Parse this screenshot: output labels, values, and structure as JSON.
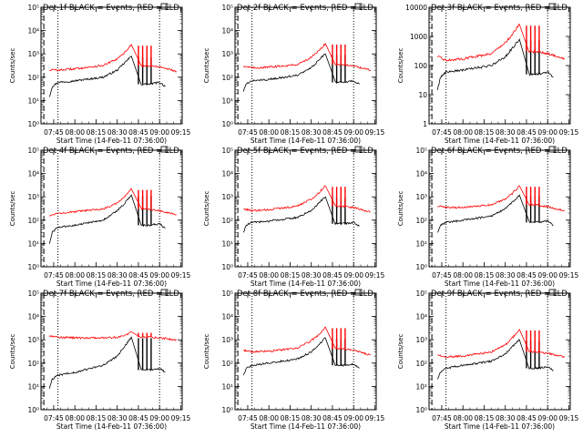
{
  "x_tick_labels": [
    "07:45",
    "08:00",
    "08:15",
    "08:30",
    "08:45",
    "09:00",
    "09:15"
  ],
  "x_tick_times_min": [
    465,
    480,
    495,
    510,
    525,
    540,
    555
  ],
  "x_range_min": [
    456,
    556
  ],
  "dotted_lines_min": [
    468,
    540
  ],
  "dashed_line_min": 458,
  "colors": {
    "events": "#000000",
    "lld": "#ff0000"
  },
  "chart_data": [
    {
      "type": "line",
      "title": "Det 1f BLACK = Events, RED = LLD",
      "xlabel": "Start Time (14-Feb-11 07:36:00)",
      "ylabel": "Counts/sec",
      "yscale": "log",
      "ylim": [
        1,
        100000
      ],
      "ytick_labels": [
        "10⁰",
        "10¹",
        "10²",
        "10³",
        "10⁴",
        "10⁵"
      ],
      "series": [
        {
          "name": "Events",
          "x": [
            462,
            464,
            468,
            480,
            500,
            510,
            515,
            518,
            520,
            527,
            532,
            540,
            544
          ],
          "y": [
            15,
            40,
            60,
            70,
            100,
            200,
            400,
            600,
            800,
            50,
            50,
            60,
            40
          ]
        },
        {
          "name": "LLD",
          "x": [
            462,
            465,
            468,
            480,
            500,
            510,
            515,
            518,
            520,
            527,
            532,
            540,
            552
          ],
          "y": [
            200,
            210,
            200,
            230,
            320,
            600,
            1100,
            1800,
            2500,
            300,
            300,
            280,
            180
          ]
        }
      ]
    },
    {
      "type": "line",
      "title": "Det 2f BLACK = Events, RED = LLD",
      "xlabel": "Start Time (14-Feb-11 07:36:00)",
      "ylabel": "Counts/sec",
      "yscale": "log",
      "ylim": [
        1,
        100000
      ],
      "ytick_labels": [
        "10⁰",
        "10¹",
        "10²",
        "10³",
        "10⁴",
        "10⁵"
      ],
      "series": [
        {
          "name": "Events",
          "x": [
            462,
            464,
            468,
            480,
            500,
            510,
            515,
            518,
            520,
            527,
            532,
            540,
            544
          ],
          "y": [
            25,
            50,
            70,
            80,
            120,
            250,
            500,
            800,
            1000,
            60,
            60,
            70,
            50
          ]
        },
        {
          "name": "LLD",
          "x": [
            462,
            465,
            468,
            480,
            500,
            510,
            515,
            518,
            520,
            527,
            532,
            540,
            552
          ],
          "y": [
            300,
            280,
            250,
            270,
            350,
            700,
            1300,
            2000,
            2800,
            350,
            350,
            300,
            200
          ]
        }
      ]
    },
    {
      "type": "line",
      "title": "Det 3f BLACK = Events, RED = LLD",
      "xlabel": "Start Time (14-Feb-11 07:36:00)",
      "ylabel": "Counts/sec",
      "yscale": "log",
      "ylim": [
        1,
        10000
      ],
      "ytick_labels": [
        "1",
        "10",
        "100",
        "1000",
        "10000"
      ],
      "series": [
        {
          "name": "Events",
          "x": [
            462,
            464,
            468,
            480,
            500,
            510,
            515,
            518,
            520,
            527,
            532,
            540,
            544
          ],
          "y": [
            15,
            40,
            60,
            70,
            100,
            200,
            400,
            600,
            800,
            50,
            50,
            60,
            40
          ]
        },
        {
          "name": "LLD",
          "x": [
            462,
            465,
            468,
            480,
            500,
            510,
            515,
            518,
            520,
            527,
            532,
            540,
            552
          ],
          "y": [
            200,
            180,
            150,
            170,
            260,
            600,
            1200,
            1900,
            2600,
            300,
            300,
            260,
            170
          ]
        }
      ]
    },
    {
      "type": "line",
      "title": "Det 4f BLACK = Events, RED = LLD",
      "xlabel": "Start Time (14-Feb-11 07:36:00)",
      "ylabel": "Counts/sec",
      "yscale": "log",
      "ylim": [
        1,
        100000
      ],
      "ytick_labels": [
        "10⁰",
        "10¹",
        "10²",
        "10³",
        "10⁴",
        "10⁵"
      ],
      "series": [
        {
          "name": "Events",
          "x": [
            462,
            464,
            468,
            480,
            500,
            510,
            515,
            518,
            520,
            527,
            532,
            540,
            544
          ],
          "y": [
            10,
            30,
            50,
            60,
            100,
            250,
            500,
            900,
            1200,
            60,
            60,
            70,
            45
          ]
        },
        {
          "name": "LLD",
          "x": [
            462,
            465,
            468,
            480,
            500,
            510,
            515,
            518,
            520,
            527,
            532,
            540,
            552
          ],
          "y": [
            150,
            180,
            200,
            230,
            300,
            550,
            1000,
            1600,
            2200,
            300,
            300,
            250,
            170
          ]
        }
      ]
    },
    {
      "type": "line",
      "title": "Det 5f BLACK = Events, RED = LLD",
      "xlabel": "Start Time (14-Feb-11 07:36:00)",
      "ylabel": "Counts/sec",
      "yscale": "log",
      "ylim": [
        1,
        100000
      ],
      "ytick_labels": [
        "10⁰",
        "10¹",
        "10²",
        "10³",
        "10⁴",
        "10⁵"
      ],
      "series": [
        {
          "name": "Events",
          "x": [
            462,
            464,
            468,
            480,
            500,
            510,
            515,
            518,
            520,
            527,
            532,
            540,
            544
          ],
          "y": [
            30,
            60,
            80,
            90,
            130,
            260,
            500,
            800,
            1000,
            70,
            70,
            80,
            55
          ]
        },
        {
          "name": "LLD",
          "x": [
            462,
            465,
            468,
            480,
            500,
            510,
            515,
            518,
            520,
            527,
            532,
            540,
            552
          ],
          "y": [
            300,
            280,
            250,
            280,
            400,
            800,
            1400,
            2200,
            3000,
            400,
            400,
            350,
            220
          ]
        }
      ]
    },
    {
      "type": "line",
      "title": "Det 6f BLACK = Events, RED = LLD",
      "xlabel": "Start Time (14-Feb-11 07:36:00)",
      "ylabel": "Counts/sec",
      "yscale": "log",
      "ylim": [
        1,
        100000
      ],
      "ytick_labels": [
        "10⁰",
        "10¹",
        "10²",
        "10³",
        "10⁴",
        "10⁵"
      ],
      "series": [
        {
          "name": "Events",
          "x": [
            462,
            464,
            468,
            480,
            500,
            510,
            515,
            518,
            520,
            527,
            532,
            540,
            544
          ],
          "y": [
            30,
            60,
            80,
            100,
            150,
            300,
            600,
            900,
            1200,
            80,
            80,
            90,
            60
          ]
        },
        {
          "name": "LLD",
          "x": [
            462,
            465,
            468,
            480,
            500,
            510,
            515,
            518,
            520,
            527,
            532,
            540,
            552
          ],
          "y": [
            400,
            380,
            350,
            350,
            450,
            800,
            1400,
            2200,
            3000,
            450,
            450,
            380,
            250
          ]
        }
      ]
    },
    {
      "type": "line",
      "title": "Det 7f BLACK = Events, RED = LLD",
      "xlabel": "Start Time (14-Feb-11 07:36:00)",
      "ylabel": "Counts/sec",
      "yscale": "log",
      "ylim": [
        1,
        100000
      ],
      "ytick_labels": [
        "10⁰",
        "10¹",
        "10²",
        "10³",
        "10⁴",
        "10⁵"
      ],
      "series": [
        {
          "name": "Events",
          "x": [
            462,
            464,
            468,
            480,
            500,
            510,
            515,
            518,
            520,
            527,
            532,
            540,
            544
          ],
          "y": [
            8,
            20,
            30,
            40,
            80,
            200,
            500,
            900,
            1300,
            50,
            50,
            60,
            40
          ]
        },
        {
          "name": "LLD",
          "x": [
            462,
            465,
            468,
            480,
            500,
            510,
            515,
            518,
            520,
            527,
            532,
            540,
            552
          ],
          "y": [
            1500,
            1400,
            1300,
            1200,
            1200,
            1300,
            1500,
            1800,
            2200,
            1300,
            1300,
            1200,
            1000
          ]
        }
      ]
    },
    {
      "type": "line",
      "title": "Det 8f BLACK = Events, RED = LLD",
      "xlabel": "Start Time (14-Feb-11 07:36:00)",
      "ylabel": "Counts/sec",
      "yscale": "log",
      "ylim": [
        1,
        100000
      ],
      "ytick_labels": [
        "10⁰",
        "10¹",
        "10²",
        "10³",
        "10⁴",
        "10⁵"
      ],
      "series": [
        {
          "name": "Events",
          "x": [
            462,
            464,
            468,
            480,
            500,
            510,
            515,
            518,
            520,
            527,
            532,
            540,
            544
          ],
          "y": [
            30,
            60,
            80,
            100,
            150,
            300,
            600,
            900,
            1200,
            80,
            80,
            90,
            60
          ]
        },
        {
          "name": "LLD",
          "x": [
            462,
            465,
            468,
            480,
            500,
            510,
            515,
            518,
            520,
            527,
            532,
            540,
            552
          ],
          "y": [
            350,
            330,
            300,
            320,
            450,
            900,
            1600,
            2500,
            3500,
            400,
            400,
            350,
            220
          ]
        }
      ]
    },
    {
      "type": "line",
      "title": "Det 9f BLACK = Events, RED = LLD",
      "xlabel": "Start Time (14-Feb-11 07:36:00)",
      "ylabel": "Counts/sec",
      "yscale": "log",
      "ylim": [
        1,
        100000
      ],
      "ytick_labels": [
        "10⁰",
        "10¹",
        "10²",
        "10³",
        "10⁴",
        "10⁵"
      ],
      "series": [
        {
          "name": "Events",
          "x": [
            462,
            464,
            468,
            480,
            500,
            510,
            515,
            518,
            520,
            527,
            532,
            540,
            544
          ],
          "y": [
            20,
            40,
            60,
            80,
            120,
            250,
            500,
            800,
            1000,
            60,
            60,
            70,
            50
          ]
        },
        {
          "name": "LLD",
          "x": [
            462,
            465,
            468,
            480,
            500,
            510,
            515,
            518,
            520,
            527,
            532,
            540,
            552
          ],
          "y": [
            220,
            200,
            180,
            200,
            300,
            600,
            1200,
            2000,
            2800,
            300,
            300,
            260,
            180
          ]
        }
      ]
    }
  ]
}
